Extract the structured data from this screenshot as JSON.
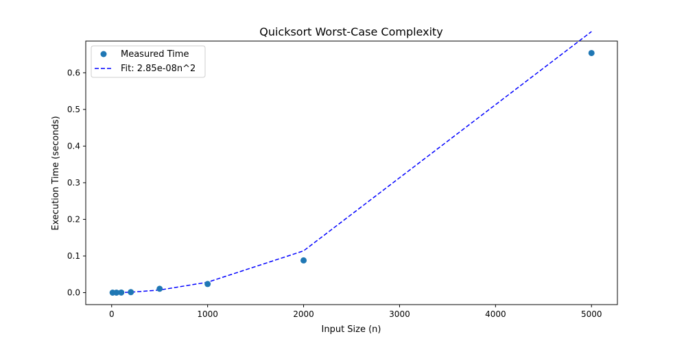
{
  "chart_data": {
    "type": "scatter",
    "title": "Quicksort Worst-Case Complexity",
    "xlabel": "Input Size (n)",
    "ylabel": "Execution Time (seconds)",
    "xlim": [
      -270,
      5270
    ],
    "ylim": [
      -0.0327,
      0.6866
    ],
    "xticks": [
      0,
      1000,
      2000,
      3000,
      4000,
      5000
    ],
    "xtick_labels": [
      "0",
      "1000",
      "2000",
      "3000",
      "4000",
      "5000"
    ],
    "yticks": [
      0.0,
      0.1,
      0.2,
      0.3,
      0.4,
      0.5,
      0.6
    ],
    "ytick_labels": [
      "0.0",
      "0.1",
      "0.2",
      "0.3",
      "0.4",
      "0.5",
      "0.6"
    ],
    "grid": false,
    "legend_position": "top-left",
    "series": [
      {
        "name": "Measured Time",
        "kind": "scatter",
        "color": "#1f77b4",
        "x": [
          10,
          50,
          100,
          200,
          500,
          1000,
          2000,
          5000
        ],
        "y": [
          0.0,
          0.0001,
          0.0003,
          0.0013,
          0.0105,
          0.0235,
          0.088,
          0.654
        ]
      },
      {
        "name": "Fit: 2.85e-08n^2",
        "kind": "line",
        "style": "dashed",
        "color": "#0000ff",
        "x": [
          10,
          50,
          100,
          200,
          500,
          1000,
          2000,
          5000
        ],
        "y": [
          3e-06,
          7e-05,
          0.000285,
          0.00114,
          0.007125,
          0.0285,
          0.114,
          0.7125
        ]
      }
    ]
  }
}
